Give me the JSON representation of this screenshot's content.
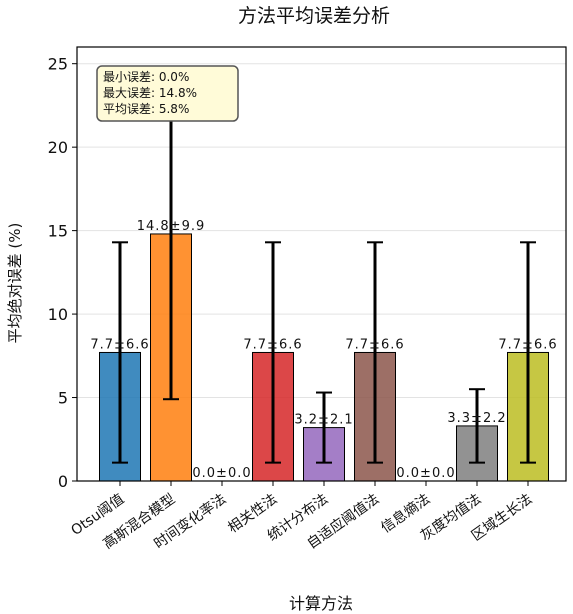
{
  "chart_data": {
    "type": "bar",
    "title": "方法平均误差分析",
    "xlabel": "计算方法",
    "ylabel": "平均绝对误差 (%)",
    "ylim": [
      0,
      26
    ],
    "yticks": [
      0,
      5,
      10,
      15,
      20,
      25
    ],
    "grid": "y",
    "categories": [
      "Otsu阈值",
      "高斯混合模型",
      "时间变化率法",
      "相关性法",
      "统计分布法",
      "自适应阈值法",
      "信息熵法",
      "灰度均值法",
      "区域生长法"
    ],
    "values": [
      7.7,
      14.8,
      0.0,
      7.7,
      3.2,
      7.7,
      0.0,
      3.3,
      7.7
    ],
    "errors": [
      6.6,
      9.9,
      0.0,
      6.6,
      2.1,
      6.6,
      0.0,
      2.2,
      6.6
    ],
    "value_labels": [
      "7.7±6.6",
      "14.8±9.9",
      "0.0±0.0",
      "7.7±6.6",
      "3.2±2.1",
      "7.7±6.6",
      "0.0±0.0",
      "3.3±2.2",
      "7.7±6.6"
    ],
    "colors": [
      "#1f77b4",
      "#ff7f0e",
      "#2ca02c",
      "#d62728",
      "#9467bd",
      "#8c564b",
      "#e377c2",
      "#7f7f7f",
      "#bcbd22"
    ],
    "stats_box": {
      "lines": [
        "最小误差: 0.0%",
        "最大误差: 14.8%",
        "平均误差: 5.8%"
      ],
      "placement": "top-left"
    }
  }
}
